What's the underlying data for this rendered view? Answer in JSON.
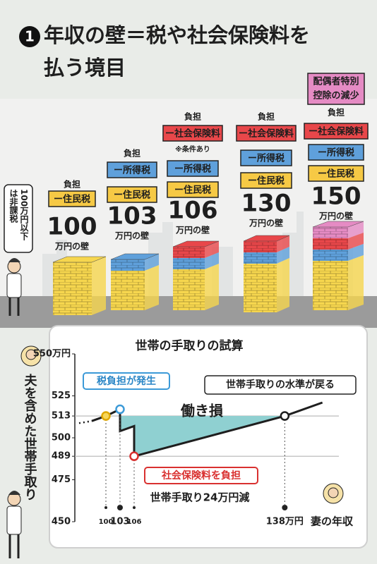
{
  "header": {
    "number": "1",
    "title_lines": [
      "年収の壁＝税や社会保険料を",
      "払う境目"
    ]
  },
  "side_note_lines": [
    "100万円以下",
    "は非課税"
  ],
  "walls": [
    {
      "amount": "100",
      "unit": "万円の壁",
      "burden": "負担",
      "items": [
        {
          "label": "ー住民税",
          "color": "#f6c945"
        }
      ]
    },
    {
      "amount": "103",
      "unit": "万円の壁",
      "burden": "負担",
      "items": [
        {
          "label": "ー所得税",
          "color": "#5fa0db"
        },
        {
          "label": "ー住民税",
          "color": "#f6c945"
        }
      ]
    },
    {
      "amount": "106",
      "unit": "万円の壁",
      "burden": "負担",
      "note": "※条件あり",
      "items": [
        {
          "label": "ー社会保険料",
          "color": "#e8474a"
        },
        {
          "label": "ー所得税",
          "color": "#5fa0db"
        },
        {
          "label": "ー住民税",
          "color": "#f6c945"
        }
      ]
    },
    {
      "amount": "130",
      "unit": "万円の壁",
      "burden": "負担",
      "items": [
        {
          "label": "ー社会保険料",
          "color": "#e8474a"
        },
        {
          "label": "ー所得税",
          "color": "#5fa0db"
        },
        {
          "label": "ー住民税",
          "color": "#f6c945"
        }
      ]
    },
    {
      "amount": "150",
      "unit": "万円の壁",
      "extra_lines": [
        "配偶者特別",
        "控除の減少"
      ],
      "extra_color": "#e58bc4",
      "burden": "負担",
      "items": [
        {
          "label": "ー社会保険料",
          "color": "#e8474a"
        },
        {
          "label": "ー所得税",
          "color": "#5fa0db"
        },
        {
          "label": "ー住民税",
          "color": "#f6c945"
        }
      ]
    }
  ],
  "chart_data": {
    "type": "line",
    "title": "世帯の手取りの試算",
    "ylabel": "夫を含めた世帯手取り",
    "xlabel": "妻の年収",
    "x": [
      97,
      100,
      103,
      103,
      106,
      106,
      138,
      146
    ],
    "series": [
      {
        "color": "#1e1e1e",
        "values": [
          510,
          513,
          517,
          504,
          507,
          489,
          513,
          521
        ],
        "marker_colors": [
          null,
          "#f6d65a",
          "#ffffff",
          null,
          null,
          "#ffffff",
          "#ffffff",
          null
        ],
        "marker_strokes": [
          null,
          "#e0a800",
          "#3c9ad8",
          null,
          null,
          "#d9302f",
          "#1e1e1e",
          null
        ]
      }
    ],
    "xlim": [
      94,
      148
    ],
    "ylim": [
      450,
      550
    ],
    "xticks": [
      100,
      103,
      106,
      {
        "value": 138,
        "label": "138万円"
      }
    ],
    "yticks": [
      {
        "value": 550,
        "label": "550万円"
      },
      525,
      513,
      500,
      489,
      475,
      450
    ],
    "hlines": [
      513,
      489
    ],
    "area_color": "#8fd0d1",
    "annotations": {
      "tax": "税負担が発生",
      "recover": "世帯手取りの水準が戻る",
      "loss": "働き損",
      "social": "社会保険料を負担",
      "decrease": "世帯手取り24万円減"
    }
  }
}
